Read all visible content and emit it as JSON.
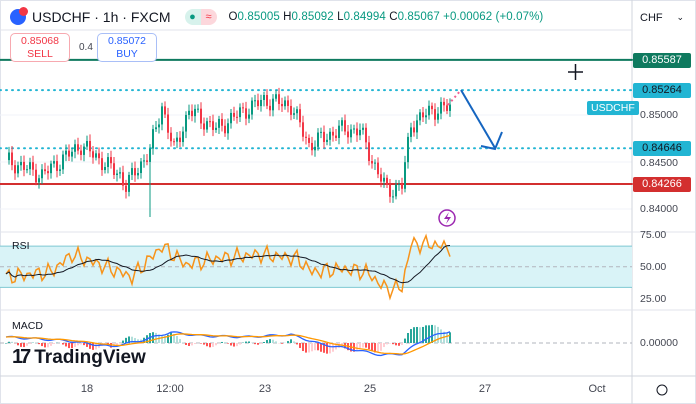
{
  "header": {
    "symbol": "USDCHF",
    "interval": "1h",
    "exchange": "FXCM",
    "sep": "·",
    "ohlc": {
      "o_label": "O",
      "o": "0.85005",
      "h_label": "H",
      "h": "0.85092",
      "l_label": "L",
      "l": "0.84994",
      "c_label": "C",
      "c": "0.85067",
      "change": "+0.00062 (+0.07%)"
    }
  },
  "trade": {
    "sell_price": "0.85068",
    "sell_label": "SELL",
    "spread": "0.4",
    "buy_price": "0.85072",
    "buy_label": "BUY"
  },
  "currency": {
    "value": "CHF"
  },
  "price_axis": {
    "ticks": [
      "0.85000",
      "0.84500",
      "0.84000"
    ]
  },
  "levels": [
    {
      "value": "0.85587",
      "color": "#0f7a5f",
      "style": "solid"
    },
    {
      "value": "0.85264",
      "color": "#22b5d3",
      "style": "dotted"
    },
    {
      "value": "0.84646",
      "color": "#22b5d3",
      "style": "dotted"
    },
    {
      "value": "0.84266",
      "color": "#d32f2f",
      "style": "solid"
    }
  ],
  "symbol_tag": "USDCHF",
  "rsi": {
    "label": "RSI",
    "ticks": [
      "75.00",
      "50.00",
      "25.00"
    ]
  },
  "macd": {
    "label": "MACD",
    "ticks": [
      "0.00000"
    ]
  },
  "time_axis": [
    "18",
    "12:00",
    "23",
    "25",
    "27",
    "Oct"
  ],
  "branding": "TradingView",
  "colors": {
    "up": "#089981",
    "down": "#f23645",
    "rsi": "#f7931a",
    "rsi_ma": "#131722",
    "macd": "#2962ff",
    "signal": "#ff9800",
    "arrow": "#1565c0"
  },
  "chart_data": {
    "type": "candlestick",
    "note": "approximate hourly USDCHF path",
    "price_keypoints": [
      [
        0,
        0.8452
      ],
      [
        12,
        0.8436
      ],
      [
        25,
        0.8468
      ],
      [
        38,
        0.8436
      ],
      [
        40,
        0.8425
      ],
      [
        48,
        0.8462
      ],
      [
        52,
        0.851
      ],
      [
        56,
        0.8462
      ],
      [
        61,
        0.8505
      ],
      [
        70,
        0.8485
      ],
      [
        78,
        0.8502
      ],
      [
        86,
        0.8516
      ],
      [
        95,
        0.851
      ],
      [
        101,
        0.8468
      ],
      [
        111,
        0.8484
      ],
      [
        118,
        0.8484
      ],
      [
        122,
        0.8452
      ],
      [
        127,
        0.8419
      ],
      [
        132,
        0.8425
      ],
      [
        135,
        0.849
      ],
      [
        142,
        0.8505
      ],
      [
        148,
        0.8508
      ]
    ],
    "rsi_keypoints": [
      [
        0,
        40
      ],
      [
        15,
        45
      ],
      [
        22,
        62
      ],
      [
        35,
        48
      ],
      [
        42,
        40
      ],
      [
        52,
        70
      ],
      [
        60,
        52
      ],
      [
        70,
        58
      ],
      [
        85,
        62
      ],
      [
        97,
        58
      ],
      [
        102,
        45
      ],
      [
        112,
        48
      ],
      [
        120,
        45
      ],
      [
        127,
        28
      ],
      [
        132,
        30
      ],
      [
        135,
        72
      ],
      [
        142,
        72
      ],
      [
        148,
        68
      ]
    ],
    "macd_keypoints": [
      [
        0,
        0.5
      ],
      [
        20,
        0.2
      ],
      [
        35,
        -0.3
      ],
      [
        45,
        0.2
      ],
      [
        55,
        0.9
      ],
      [
        65,
        0.6
      ],
      [
        80,
        0.5
      ],
      [
        95,
        0.7
      ],
      [
        105,
        -0.1
      ],
      [
        115,
        -0.5
      ],
      [
        125,
        -1.0
      ],
      [
        132,
        -0.9
      ],
      [
        140,
        0.4
      ],
      [
        148,
        1.0
      ]
    ]
  }
}
